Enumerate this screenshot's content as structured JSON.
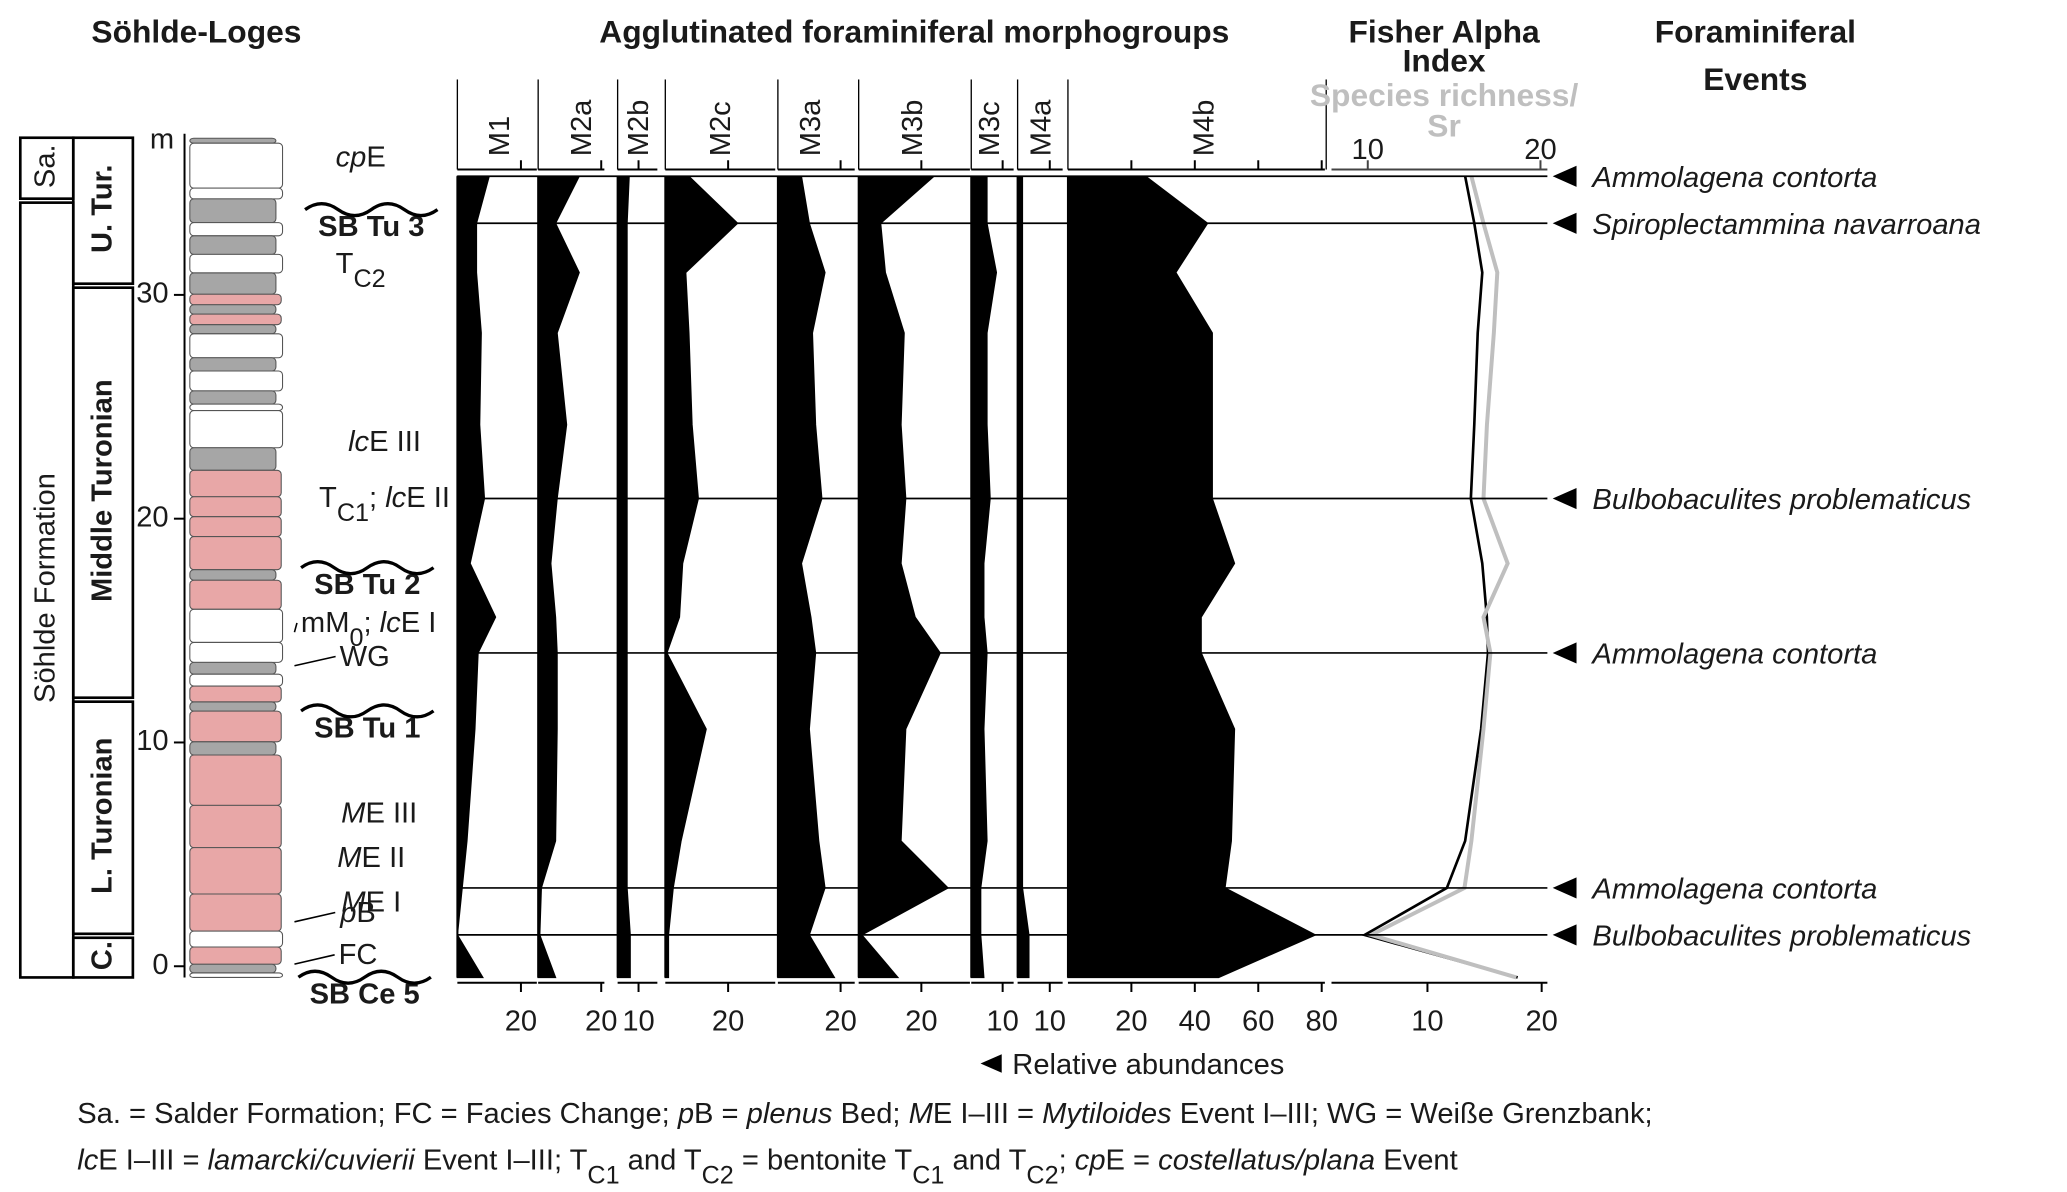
{
  "header": {
    "section_title": "Söhlde-Loges",
    "morphogroups_title": "Agglutinated foraminiferal morphogroups",
    "events_title": [
      "Foraminiferal",
      "Events"
    ],
    "x_label": "Relative abundances"
  },
  "section": {
    "depth_unit": "m",
    "ylim": [
      -0.5,
      37.2
    ],
    "yticks": [
      0,
      10,
      20,
      30
    ],
    "formations": [
      {
        "name": "Sa.",
        "top": 37.2,
        "base": 34.3
      },
      {
        "name": "Söhlde Formation",
        "top": 34.3,
        "base": -0.5
      }
    ],
    "stages": [
      {
        "name": "U. Tur.",
        "top": 37.2,
        "base": 30.5
      },
      {
        "name": "Middle Turonian",
        "top": 30.5,
        "base": 12.0
      },
      {
        "name": "L. Turonian",
        "top": 12.0,
        "base": 1.45
      },
      {
        "name": "C.",
        "top": 1.45,
        "base": -0.5
      }
    ],
    "beds": [
      {
        "top": 37.0,
        "base": 36.78,
        "color": "#a6a6a6"
      },
      {
        "top": 36.78,
        "base": 34.77,
        "color": "#ffffff"
      },
      {
        "top": 34.77,
        "base": 34.29,
        "color": "#ffffff"
      },
      {
        "top": 34.29,
        "base": 33.23,
        "color": "#a6a6a6"
      },
      {
        "top": 33.23,
        "base": 32.64,
        "color": "#ffffff"
      },
      {
        "top": 32.64,
        "base": 31.81,
        "color": "#a6a6a6"
      },
      {
        "top": 31.81,
        "base": 30.98,
        "color": "#ffffff"
      },
      {
        "top": 30.98,
        "base": 30.03,
        "color": "#a6a6a6"
      },
      {
        "top": 30.03,
        "base": 29.56,
        "color": "#e8a7a7"
      },
      {
        "top": 29.56,
        "base": 29.14,
        "color": "#a6a6a6"
      },
      {
        "top": 29.14,
        "base": 28.67,
        "color": "#e8a7a7"
      },
      {
        "top": 28.67,
        "base": 28.26,
        "color": "#a6a6a6"
      },
      {
        "top": 28.26,
        "base": 27.19,
        "color": "#ffffff"
      },
      {
        "top": 27.19,
        "base": 26.6,
        "color": "#a6a6a6"
      },
      {
        "top": 26.6,
        "base": 25.71,
        "color": "#ffffff"
      },
      {
        "top": 25.71,
        "base": 25.12,
        "color": "#a6a6a6"
      },
      {
        "top": 25.12,
        "base": 24.83,
        "color": "#ffffff"
      },
      {
        "top": 24.83,
        "base": 23.17,
        "color": "#ffffff"
      },
      {
        "top": 23.17,
        "base": 22.16,
        "color": "#a6a6a6"
      },
      {
        "top": 22.16,
        "base": 20.98,
        "color": "#e8a7a7"
      },
      {
        "top": 20.98,
        "base": 20.09,
        "color": "#e8a7a7"
      },
      {
        "top": 20.09,
        "base": 19.2,
        "color": "#e8a7a7"
      },
      {
        "top": 19.2,
        "base": 17.72,
        "color": "#e8a7a7"
      },
      {
        "top": 17.72,
        "base": 17.25,
        "color": "#a6a6a6"
      },
      {
        "top": 17.25,
        "base": 15.95,
        "color": "#e8a7a7"
      },
      {
        "top": 15.95,
        "base": 14.47,
        "color": "#ffffff"
      },
      {
        "top": 14.47,
        "base": 13.58,
        "color": "#ffffff"
      },
      {
        "top": 13.58,
        "base": 13.05,
        "color": "#a6a6a6"
      },
      {
        "top": 13.05,
        "base": 12.52,
        "color": "#ffffff"
      },
      {
        "top": 12.52,
        "base": 11.81,
        "color": "#e8a7a7"
      },
      {
        "top": 11.81,
        "base": 11.4,
        "color": "#a6a6a6"
      },
      {
        "top": 11.4,
        "base": 10.03,
        "color": "#e8a7a7"
      },
      {
        "top": 10.03,
        "base": 9.44,
        "color": "#a6a6a6"
      },
      {
        "top": 9.44,
        "base": 7.19,
        "color": "#e8a7a7"
      },
      {
        "top": 7.19,
        "base": 5.3,
        "color": "#e8a7a7"
      },
      {
        "top": 5.3,
        "base": 3.23,
        "color": "#e8a7a7"
      },
      {
        "top": 3.23,
        "base": 1.57,
        "color": "#e8a7a7"
      },
      {
        "top": 1.57,
        "base": 0.86,
        "color": "#ffffff"
      },
      {
        "top": 0.86,
        "base": 0.09,
        "color": "#e8a7a7"
      },
      {
        "top": 0.09,
        "base": -0.3,
        "color": "#a6a6a6"
      },
      {
        "top": -0.3,
        "base": -0.5,
        "color": "#ffffff"
      }
    ],
    "annotations": [
      {
        "depth": 36.2,
        "text": [
          {
            "t": "cp",
            "s": "i"
          },
          {
            "t": "E"
          }
        ]
      },
      {
        "depth": 33.1,
        "boundary": true,
        "text": [
          {
            "t": "SB Tu 3",
            "s": "b"
          }
        ]
      },
      {
        "depth": 31.45,
        "text": [
          {
            "t": "T"
          },
          {
            "t": "C2",
            "s": "sub"
          }
        ]
      },
      {
        "depth": 23.5,
        "text": [
          {
            "t": "lc",
            "s": "i"
          },
          {
            "t": "E III"
          }
        ]
      },
      {
        "depth": 21.0,
        "text": [
          {
            "t": "T"
          },
          {
            "t": "C1",
            "s": "sub"
          },
          {
            "t": "; "
          },
          {
            "t": "lc",
            "s": "i"
          },
          {
            "t": "E II"
          }
        ]
      },
      {
        "depth": 17.1,
        "boundary": true,
        "text": [
          {
            "t": "SB Tu 2",
            "s": "b"
          }
        ]
      },
      {
        "depth": 15.4,
        "leader": true,
        "text": [
          {
            "t": "mM"
          },
          {
            "t": "0",
            "s": "sub"
          },
          {
            "t": "; "
          },
          {
            "t": "lc",
            "s": "i"
          },
          {
            "t": "E I"
          }
        ]
      },
      {
        "depth": 13.9,
        "leader": true,
        "text": [
          {
            "t": "WG"
          }
        ]
      },
      {
        "depth": 10.7,
        "boundary": true,
        "text": [
          {
            "t": "SB Tu 1",
            "s": "b"
          }
        ]
      },
      {
        "depth": 6.9,
        "text": [
          {
            "t": "M",
            "s": "i"
          },
          {
            "t": "E III"
          }
        ]
      },
      {
        "depth": 4.9,
        "text": [
          {
            "t": "M",
            "s": "i"
          },
          {
            "t": "E II"
          }
        ]
      },
      {
        "depth": 2.93,
        "text": [
          {
            "t": "M",
            "s": "i"
          },
          {
            "t": "E I"
          }
        ]
      },
      {
        "depth": 2.46,
        "leader": true,
        "text": [
          {
            "t": "p",
            "s": "i"
          },
          {
            "t": "B"
          }
        ]
      },
      {
        "depth": 0.57,
        "leader": true,
        "text": [
          {
            "t": "FC"
          }
        ]
      },
      {
        "depth": -1.2,
        "boundary": true,
        "text": [
          {
            "t": "SB Ce 5",
            "s": "b"
          }
        ]
      }
    ]
  },
  "sample_depths": [
    35.3,
    33.2,
    31.0,
    28.3,
    24.2,
    20.9,
    18.0,
    15.6,
    14.0,
    10.6,
    5.6,
    3.5,
    1.4,
    -0.5
  ],
  "chart_data": [
    {
      "type": "area",
      "title": "M1",
      "xlim": [
        0,
        25
      ],
      "xticks": [
        20
      ],
      "color": "#000000",
      "values": [
        10,
        6,
        6,
        7.5,
        7,
        8.5,
        4,
        12,
        6.5,
        5.5,
        3,
        1.5,
        0,
        8
      ]
    },
    {
      "type": "area",
      "title": "M2a",
      "xlim": [
        0,
        21
      ],
      "xticks": [
        20
      ],
      "color": "#000000",
      "values": [
        13,
        5.5,
        13,
        6,
        9,
        6,
        4,
        5.5,
        6,
        6,
        5.5,
        1,
        0.5,
        5.5
      ]
    },
    {
      "type": "area",
      "title": "M2b",
      "xlim": [
        0,
        19
      ],
      "xticks": [
        10
      ],
      "color": "#000000",
      "values": [
        5.5,
        4.5,
        4.5,
        4.5,
        4.5,
        4.5,
        4.5,
        4.5,
        4.5,
        4.5,
        4.5,
        4.5,
        6,
        6
      ]
    },
    {
      "type": "area",
      "title": "M2c",
      "xlim": [
        0,
        35
      ],
      "xticks": [
        20
      ],
      "color": "#000000",
      "values": [
        7.5,
        23,
        6.5,
        7.5,
        8.5,
        10.5,
        5.5,
        4.5,
        0.5,
        13,
        5,
        2.5,
        1,
        1
      ]
    },
    {
      "type": "area",
      "title": "M3a",
      "xlim": [
        0,
        24.5
      ],
      "xticks": [
        20
      ],
      "color": "#000000",
      "values": [
        7.5,
        10,
        15,
        11,
        12,
        14,
        7.5,
        10.5,
        12,
        10,
        13,
        15,
        10,
        18
      ]
    },
    {
      "type": "area",
      "title": "M3b",
      "xlim": [
        0,
        35.5
      ],
      "xticks": [
        20
      ],
      "color": "#000000",
      "values": [
        24,
        7,
        8.5,
        14.5,
        13.5,
        15,
        13.5,
        18,
        26,
        15,
        13.5,
        28.5,
        1,
        12.5
      ]
    },
    {
      "type": "area",
      "title": "M3c",
      "xlim": [
        0,
        13.5
      ],
      "xticks": [
        10
      ],
      "color": "#000000",
      "values": [
        5,
        5,
        8,
        5,
        5,
        6,
        4,
        4,
        5,
        4,
        5,
        3,
        3,
        4
      ]
    },
    {
      "type": "area",
      "title": "M4a",
      "xlim": [
        0,
        14
      ],
      "xticks": [
        10
      ],
      "color": "#000000",
      "values": [
        1.5,
        1.5,
        1.5,
        1.5,
        1.5,
        1.5,
        1.5,
        1.5,
        1.5,
        1.5,
        1.5,
        1.5,
        3.5,
        3.5
      ]
    },
    {
      "type": "area",
      "title": "M4b",
      "xlim": [
        0,
        81
      ],
      "xticks": [
        20,
        40,
        60,
        80
      ],
      "color": "#000000",
      "values": [
        24.5,
        44,
        34,
        45.5,
        45.5,
        45.5,
        52.5,
        42,
        42,
        52.5,
        51.5,
        49.5,
        78,
        47.5
      ]
    },
    {
      "type": "line",
      "title": [
        "Fisher Alpha",
        "Index"
      ],
      "xlim": [
        1.6,
        20.5
      ],
      "xticks": [
        10,
        20
      ],
      "x2_title": [
        "Species richness/",
        "Sr"
      ],
      "x2lim": [
        7.9,
        20.4
      ],
      "x2ticks": [
        10,
        20
      ],
      "series": [
        {
          "color": "#000000",
          "values": [
            13.3,
            14.1,
            14.8,
            14.4,
            14.1,
            13.8,
            14.8,
            15.2,
            15.3,
            14.7,
            13.3,
            11.7,
            4.5,
            17.9
          ]
        },
        {
          "color": "#bfbfbf",
          "axis": "x2",
          "values": [
            16,
            16.7,
            17.5,
            17.3,
            16.9,
            16.7,
            18.1,
            16.7,
            17.1,
            16.7,
            16,
            15.6,
            10.2,
            18.6
          ]
        }
      ]
    }
  ],
  "events": [
    {
      "name": "Ammolagena contorta",
      "depth": 35.3
    },
    {
      "name": "Spiroplectammina navarroana",
      "depth": 33.2
    },
    {
      "name": "Bulbobaculites problematicus",
      "depth": 20.9
    },
    {
      "name": "Ammolagena contorta",
      "depth": 14.0
    },
    {
      "name": "Ammolagena contorta",
      "depth": 3.5
    },
    {
      "name": "Bulbobaculites problematicus",
      "depth": 1.4
    }
  ],
  "footnote": [
    [
      {
        "t": "Sa. = Salder Formation; FC = Facies Change; "
      },
      {
        "t": "p",
        "s": "i"
      },
      {
        "t": "B = "
      },
      {
        "t": "plenus",
        "s": "i"
      },
      {
        "t": " Bed; "
      },
      {
        "t": "M",
        "s": "i"
      },
      {
        "t": "E I–III = "
      },
      {
        "t": "Mytiloides",
        "s": "i"
      },
      {
        "t": " Event I–III; WG = Weiße Grenzbank;"
      }
    ],
    [
      {
        "t": "lc",
        "s": "i"
      },
      {
        "t": "E I–III = "
      },
      {
        "t": "lamarcki/cuvierii",
        "s": "i"
      },
      {
        "t": " Event I–III; T"
      },
      {
        "t": "C1",
        "s": "sub"
      },
      {
        "t": " and T"
      },
      {
        "t": "C2",
        "s": "sub"
      },
      {
        "t": " = bentonite T"
      },
      {
        "t": "C1",
        "s": "sub"
      },
      {
        "t": " and T"
      },
      {
        "t": "C2",
        "s": "sub"
      },
      {
        "t": "; "
      },
      {
        "t": "cp",
        "s": "i"
      },
      {
        "t": "E = "
      },
      {
        "t": "costellatus/plana",
        "s": "i"
      },
      {
        "t": " Event"
      }
    ]
  ]
}
